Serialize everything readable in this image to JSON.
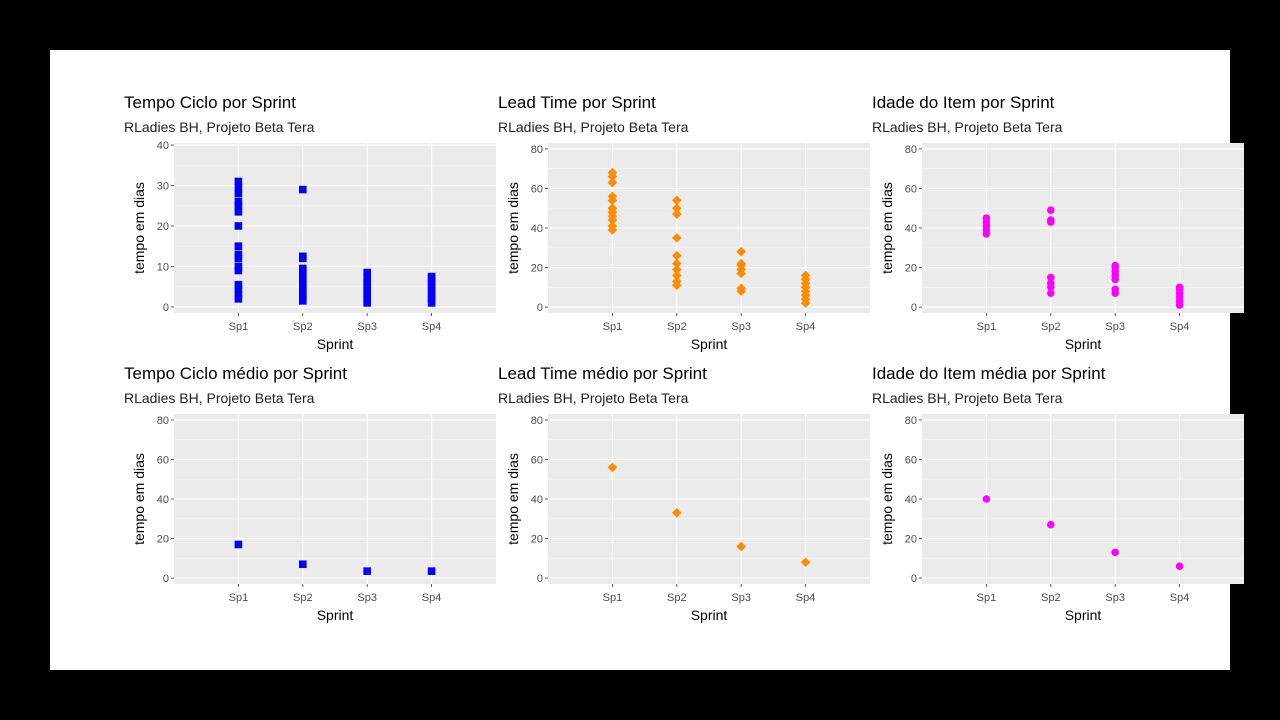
{
  "chart_data": [
    {
      "type": "scatter",
      "title": "Tempo Ciclo por Sprint",
      "subtitle": "RLadies BH, Projeto Beta Tera",
      "xlabel": "Sprint",
      "ylabel": "tempo em dias",
      "categories": [
        "Sp1",
        "Sp2",
        "Sp3",
        "Sp4"
      ],
      "ylim": [
        -1.5,
        40.5
      ],
      "yticks": [
        0,
        10,
        20,
        30,
        40
      ],
      "marker": "square",
      "color": "#0000ff",
      "points": [
        {
          "x": "Sp1",
          "y": 2
        },
        {
          "x": "Sp1",
          "y": 3
        },
        {
          "x": "Sp1",
          "y": 4.5
        },
        {
          "x": "Sp1",
          "y": 5.5
        },
        {
          "x": "Sp1",
          "y": 9
        },
        {
          "x": "Sp1",
          "y": 10
        },
        {
          "x": "Sp1",
          "y": 12
        },
        {
          "x": "Sp1",
          "y": 13
        },
        {
          "x": "Sp1",
          "y": 15
        },
        {
          "x": "Sp1",
          "y": 20
        },
        {
          "x": "Sp1",
          "y": 23.5
        },
        {
          "x": "Sp1",
          "y": 25
        },
        {
          "x": "Sp1",
          "y": 26
        },
        {
          "x": "Sp1",
          "y": 28
        },
        {
          "x": "Sp1",
          "y": 29.5
        },
        {
          "x": "Sp1",
          "y": 31
        },
        {
          "x": "Sp2",
          "y": 1.5
        },
        {
          "x": "Sp2",
          "y": 2.5
        },
        {
          "x": "Sp2",
          "y": 3.5
        },
        {
          "x": "Sp2",
          "y": 4.5
        },
        {
          "x": "Sp2",
          "y": 5.5
        },
        {
          "x": "Sp2",
          "y": 6.5
        },
        {
          "x": "Sp2",
          "y": 7.5
        },
        {
          "x": "Sp2",
          "y": 8.5
        },
        {
          "x": "Sp2",
          "y": 9.5
        },
        {
          "x": "Sp2",
          "y": 12
        },
        {
          "x": "Sp2",
          "y": 12.5
        },
        {
          "x": "Sp2",
          "y": 29
        },
        {
          "x": "Sp3",
          "y": 1
        },
        {
          "x": "Sp3",
          "y": 2
        },
        {
          "x": "Sp3",
          "y": 3
        },
        {
          "x": "Sp3",
          "y": 4
        },
        {
          "x": "Sp3",
          "y": 5
        },
        {
          "x": "Sp3",
          "y": 6
        },
        {
          "x": "Sp3",
          "y": 7
        },
        {
          "x": "Sp3",
          "y": 8.5
        },
        {
          "x": "Sp4",
          "y": 1
        },
        {
          "x": "Sp4",
          "y": 2
        },
        {
          "x": "Sp4",
          "y": 3
        },
        {
          "x": "Sp4",
          "y": 4
        },
        {
          "x": "Sp4",
          "y": 5
        },
        {
          "x": "Sp4",
          "y": 6
        },
        {
          "x": "Sp4",
          "y": 7
        },
        {
          "x": "Sp4",
          "y": 7.5
        }
      ]
    },
    {
      "type": "scatter",
      "title": "Lead Time por Sprint",
      "subtitle": "RLadies BH, Projeto Beta Tera",
      "xlabel": "Sprint",
      "ylabel": "tempo em dias",
      "categories": [
        "Sp1",
        "Sp2",
        "Sp3",
        "Sp4"
      ],
      "ylim": [
        -3,
        83
      ],
      "yticks": [
        0,
        20,
        40,
        60,
        80
      ],
      "marker": "diamond",
      "color": "#ff8c00",
      "points": [
        {
          "x": "Sp1",
          "y": 39
        },
        {
          "x": "Sp1",
          "y": 41
        },
        {
          "x": "Sp1",
          "y": 44
        },
        {
          "x": "Sp1",
          "y": 46
        },
        {
          "x": "Sp1",
          "y": 48
        },
        {
          "x": "Sp1",
          "y": 50
        },
        {
          "x": "Sp1",
          "y": 54
        },
        {
          "x": "Sp1",
          "y": 56
        },
        {
          "x": "Sp1",
          "y": 63
        },
        {
          "x": "Sp1",
          "y": 66
        },
        {
          "x": "Sp1",
          "y": 68
        },
        {
          "x": "Sp2",
          "y": 11
        },
        {
          "x": "Sp2",
          "y": 13
        },
        {
          "x": "Sp2",
          "y": 16
        },
        {
          "x": "Sp2",
          "y": 19
        },
        {
          "x": "Sp2",
          "y": 22
        },
        {
          "x": "Sp2",
          "y": 26
        },
        {
          "x": "Sp2",
          "y": 35
        },
        {
          "x": "Sp2",
          "y": 47
        },
        {
          "x": "Sp2",
          "y": 50
        },
        {
          "x": "Sp2",
          "y": 54
        },
        {
          "x": "Sp3",
          "y": 8
        },
        {
          "x": "Sp3",
          "y": 9.5
        },
        {
          "x": "Sp3",
          "y": 17
        },
        {
          "x": "Sp3",
          "y": 19
        },
        {
          "x": "Sp3",
          "y": 21
        },
        {
          "x": "Sp3",
          "y": 22
        },
        {
          "x": "Sp3",
          "y": 28
        },
        {
          "x": "Sp4",
          "y": 2
        },
        {
          "x": "Sp4",
          "y": 4
        },
        {
          "x": "Sp4",
          "y": 6
        },
        {
          "x": "Sp4",
          "y": 8
        },
        {
          "x": "Sp4",
          "y": 10
        },
        {
          "x": "Sp4",
          "y": 12
        },
        {
          "x": "Sp4",
          "y": 14
        },
        {
          "x": "Sp4",
          "y": 16
        }
      ]
    },
    {
      "type": "scatter",
      "title": "Idade do Item por Sprint",
      "subtitle": "RLadies BH, Projeto Beta Tera",
      "xlabel": "Sprint",
      "ylabel": "tempo em dias",
      "categories": [
        "Sp1",
        "Sp2",
        "Sp3",
        "Sp4"
      ],
      "ylim": [
        -3,
        83
      ],
      "yticks": [
        0,
        20,
        40,
        60,
        80
      ],
      "marker": "circle",
      "color": "#ff00ff",
      "points": [
        {
          "x": "Sp1",
          "y": 37
        },
        {
          "x": "Sp1",
          "y": 39
        },
        {
          "x": "Sp1",
          "y": 41
        },
        {
          "x": "Sp1",
          "y": 43
        },
        {
          "x": "Sp1",
          "y": 45
        },
        {
          "x": "Sp2",
          "y": 7
        },
        {
          "x": "Sp2",
          "y": 10
        },
        {
          "x": "Sp2",
          "y": 12
        },
        {
          "x": "Sp2",
          "y": 15
        },
        {
          "x": "Sp2",
          "y": 43
        },
        {
          "x": "Sp2",
          "y": 44
        },
        {
          "x": "Sp2",
          "y": 49
        },
        {
          "x": "Sp3",
          "y": 7
        },
        {
          "x": "Sp3",
          "y": 9
        },
        {
          "x": "Sp3",
          "y": 14
        },
        {
          "x": "Sp3",
          "y": 16
        },
        {
          "x": "Sp3",
          "y": 18
        },
        {
          "x": "Sp3",
          "y": 20
        },
        {
          "x": "Sp3",
          "y": 21
        },
        {
          "x": "Sp4",
          "y": 1
        },
        {
          "x": "Sp4",
          "y": 3
        },
        {
          "x": "Sp4",
          "y": 5
        },
        {
          "x": "Sp4",
          "y": 7
        },
        {
          "x": "Sp4",
          "y": 9
        },
        {
          "x": "Sp4",
          "y": 10
        }
      ]
    },
    {
      "type": "scatter",
      "title": "Tempo Ciclo médio por Sprint",
      "subtitle": "RLadies BH, Projeto Beta Tera",
      "xlabel": "Sprint",
      "ylabel": "tempo em dias",
      "categories": [
        "Sp1",
        "Sp2",
        "Sp3",
        "Sp4"
      ],
      "ylim": [
        -3,
        83
      ],
      "yticks": [
        0,
        20,
        40,
        60,
        80
      ],
      "marker": "square",
      "color": "#0000ff",
      "points": [
        {
          "x": "Sp1",
          "y": 17
        },
        {
          "x": "Sp2",
          "y": 7
        },
        {
          "x": "Sp3",
          "y": 3.5
        },
        {
          "x": "Sp4",
          "y": 3.5
        }
      ]
    },
    {
      "type": "scatter",
      "title": "Lead Time médio por Sprint",
      "subtitle": "RLadies BH, Projeto Beta Tera",
      "xlabel": "Sprint",
      "ylabel": "tempo em dias",
      "categories": [
        "Sp1",
        "Sp2",
        "Sp3",
        "Sp4"
      ],
      "ylim": [
        -3,
        83
      ],
      "yticks": [
        0,
        20,
        40,
        60,
        80
      ],
      "marker": "diamond",
      "color": "#ff8c00",
      "points": [
        {
          "x": "Sp1",
          "y": 56
        },
        {
          "x": "Sp2",
          "y": 33
        },
        {
          "x": "Sp3",
          "y": 16
        },
        {
          "x": "Sp4",
          "y": 8
        }
      ]
    },
    {
      "type": "scatter",
      "title": "Idade do Item média por Sprint",
      "subtitle": "RLadies BH, Projeto Beta Tera",
      "xlabel": "Sprint",
      "ylabel": "tempo em dias",
      "categories": [
        "Sp1",
        "Sp2",
        "Sp3",
        "Sp4"
      ],
      "ylim": [
        -3,
        83
      ],
      "yticks": [
        0,
        20,
        40,
        60,
        80
      ],
      "marker": "circle",
      "color": "#ff00ff",
      "points": [
        {
          "x": "Sp1",
          "y": 40
        },
        {
          "x": "Sp2",
          "y": 27
        },
        {
          "x": "Sp3",
          "y": 13
        },
        {
          "x": "Sp4",
          "y": 6
        }
      ]
    }
  ]
}
